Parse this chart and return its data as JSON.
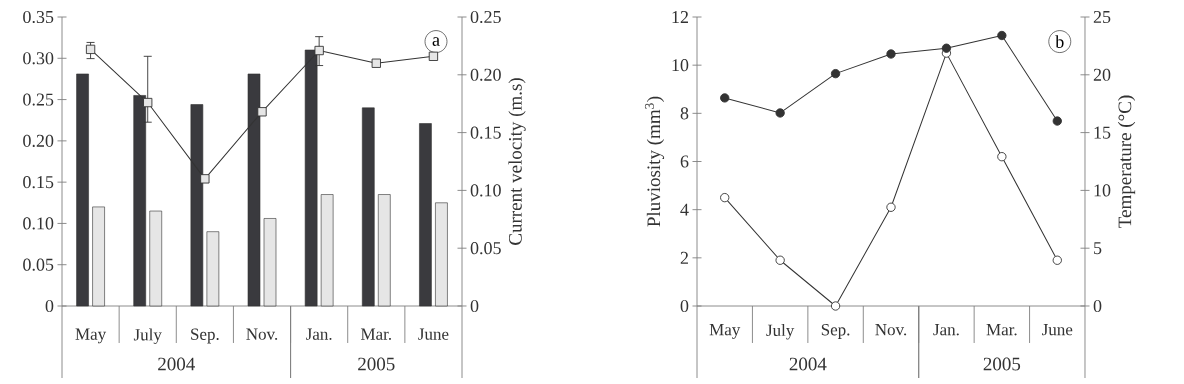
{
  "chart_data": [
    {
      "type": "bar",
      "title": "a",
      "y2label": "Current velocity (m.s)",
      "categories": [
        "May",
        "July",
        "Sep.",
        "Nov.",
        "Jan.",
        "Mar.",
        "June"
      ],
      "annotations": [
        "2004",
        "2005"
      ],
      "series": [
        {
          "color": "#3a3a3e",
          "values": [
            0.281,
            0.255,
            0.244,
            0.281,
            0.31,
            0.24,
            0.221
          ]
        },
        {
          "color": "#e6e6e6",
          "values": [
            0.12,
            0.115,
            0.09,
            0.106,
            0.135,
            0.135,
            0.125
          ]
        },
        {
          "type": "line",
          "axis": "y2",
          "marker": "square",
          "color": "#e6e6e6",
          "values": [
            0.222,
            0.176,
            0.11,
            0.168,
            0.221,
            0.21,
            0.216
          ],
          "errors": [
            [
              0.214,
              0.228
            ],
            [
              0.159,
              0.216
            ],
            null,
            null,
            [
              0.208,
              0.233
            ],
            null,
            null
          ]
        }
      ],
      "ylim": [
        0,
        0.35
      ],
      "yticks": [
        0,
        0.05,
        {
          "value": 0.1,
          "label": "0.10"
        },
        0.15,
        {
          "value": 0.2,
          "label": "0.20"
        },
        0.25,
        {
          "value": 0.3,
          "label": "0.30"
        },
        0.35
      ],
      "y2lim": [
        0,
        0.25
      ],
      "y2ticks": [
        0,
        0.05,
        {
          "value": 0.1,
          "label": "0.10"
        },
        0.15,
        {
          "value": 0.2,
          "label": "0.20"
        },
        0.25
      ]
    },
    {
      "type": "line",
      "title": "b",
      "ylabel": "Pluviosity (mm$^{3}$)",
      "y2label": "Temperature (°C)",
      "categories": [
        "May",
        "July",
        "Sep.",
        "Nov.",
        "Jan.",
        "Mar.",
        "June"
      ],
      "annotations": [
        "2004",
        "2005"
      ],
      "series": [
        {
          "axis": "y2",
          "marker": "circle",
          "color": "#333333",
          "values": [
            18,
            16.7,
            20.1,
            21.8,
            22.3,
            23.4,
            16
          ]
        },
        {
          "marker": "circle",
          "color": "#ffffff",
          "values": [
            4.5,
            1.9,
            0,
            4.1,
            10.5,
            6.2,
            1.9
          ]
        }
      ],
      "ylim": [
        0,
        12
      ],
      "yticks": [
        0,
        2,
        4,
        6,
        8,
        10,
        12
      ],
      "y2lim": [
        0,
        25
      ],
      "y2ticks": [
        0,
        5,
        10,
        15,
        20,
        25
      ]
    }
  ]
}
